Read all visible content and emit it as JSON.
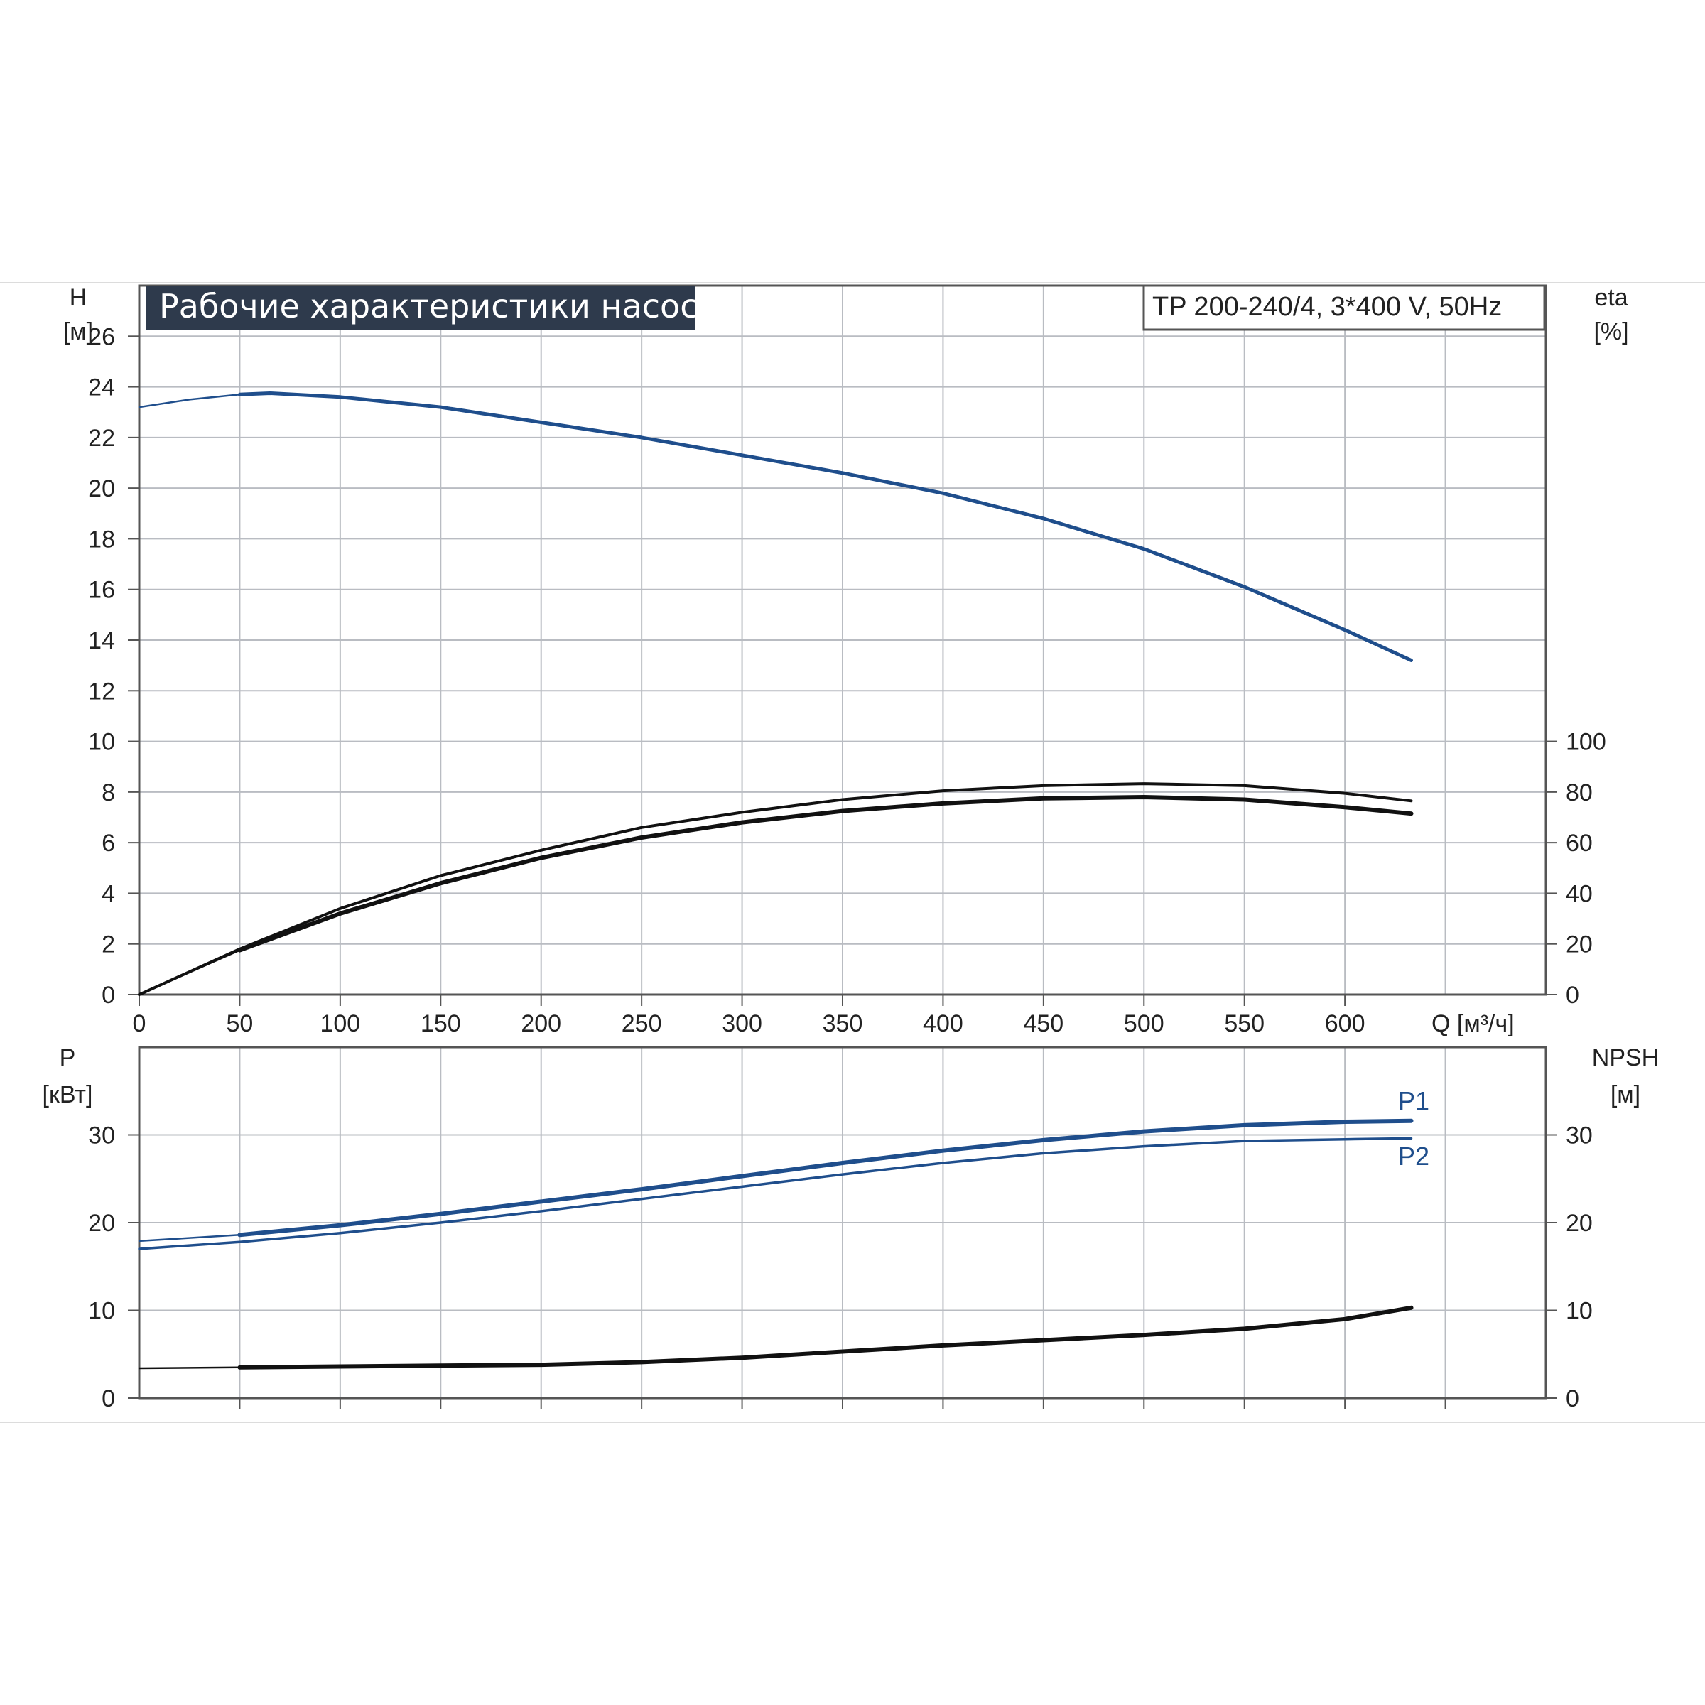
{
  "colors": {
    "blue": "#1f4e8c",
    "black": "#111111",
    "grid": "#b9bcc2",
    "title_bg": "#2e3a4c",
    "frame": "#555555"
  },
  "header": {
    "title": "Рабочие характеристики насоса",
    "model": "TP 200-240/4, 3*400 V, 50Hz"
  },
  "chart_data": [
    {
      "type": "line",
      "panel": "top",
      "xlabel": "Q [м³/ч]",
      "xlim": [
        0,
        700
      ],
      "xticks": [
        0,
        50,
        100,
        150,
        200,
        250,
        300,
        350,
        400,
        450,
        500,
        550,
        600
      ],
      "left_axis": {
        "label_line1": "H",
        "label_line2": "[м]",
        "lim": [
          0,
          28
        ],
        "ticks": [
          0,
          2,
          4,
          6,
          8,
          10,
          12,
          14,
          16,
          18,
          20,
          22,
          24,
          26
        ]
      },
      "right_axis": {
        "label_line1": "eta",
        "label_line2": "[%]",
        "lim": [
          0,
          280
        ],
        "ticks": [
          0,
          20,
          40,
          60,
          80,
          100
        ]
      },
      "series": [
        {
          "key": "head",
          "axis": "left",
          "color": "#1f4e8c",
          "width": 5,
          "x": [
            0,
            25,
            50,
            65,
            100,
            150,
            200,
            250,
            300,
            350,
            400,
            450,
            500,
            550,
            600,
            633
          ],
          "y": [
            23.2,
            23.5,
            23.7,
            23.75,
            23.6,
            23.2,
            22.6,
            22.0,
            21.3,
            20.6,
            19.8,
            18.8,
            17.6,
            16.1,
            14.4,
            13.2
          ],
          "thin_until": 45
        },
        {
          "key": "eta_upper",
          "axis": "right",
          "color": "#111111",
          "width": 4,
          "x": [
            0,
            50,
            100,
            150,
            200,
            250,
            300,
            350,
            400,
            450,
            500,
            550,
            600,
            633
          ],
          "y": [
            0,
            18,
            34,
            47,
            57,
            66,
            72,
            77,
            80.5,
            82.5,
            83.3,
            82.5,
            79.5,
            76.5
          ]
        },
        {
          "key": "eta_lower",
          "axis": "right",
          "color": "#111111",
          "width": 6,
          "x": [
            0,
            50,
            100,
            150,
            200,
            250,
            300,
            350,
            400,
            450,
            500,
            550,
            600,
            633
          ],
          "y": [
            0,
            17.5,
            32,
            44,
            54,
            62,
            68,
            72.5,
            75.5,
            77.5,
            78,
            77,
            74,
            71.5
          ],
          "thin_until": 45
        }
      ]
    },
    {
      "type": "line",
      "panel": "bottom",
      "xlim": [
        0,
        700
      ],
      "left_axis": {
        "label_line1": "P",
        "label_line2": "[кВт]",
        "lim": [
          0,
          40
        ],
        "ticks": [
          0,
          10,
          20,
          30
        ]
      },
      "right_axis": {
        "label_line1": "NPSH",
        "label_line2": "[м]",
        "lim": [
          0,
          40
        ],
        "ticks": [
          0,
          10,
          20,
          30
        ]
      },
      "series": [
        {
          "key": "p1",
          "name": "P1",
          "axis": "left",
          "color": "#1f4e8c",
          "width": 6,
          "x": [
            0,
            50,
            100,
            150,
            200,
            250,
            300,
            350,
            400,
            450,
            500,
            550,
            600,
            633
          ],
          "y": [
            17.9,
            18.6,
            19.7,
            21.0,
            22.4,
            23.8,
            25.3,
            26.8,
            28.2,
            29.4,
            30.4,
            31.1,
            31.5,
            31.6
          ],
          "thin_until": 45
        },
        {
          "key": "p2",
          "name": "P2",
          "axis": "left",
          "color": "#1f4e8c",
          "width": 3.5,
          "x": [
            0,
            50,
            100,
            150,
            200,
            250,
            300,
            350,
            400,
            450,
            500,
            550,
            600,
            633
          ],
          "y": [
            17.0,
            17.8,
            18.8,
            20.0,
            21.3,
            22.7,
            24.1,
            25.5,
            26.8,
            27.9,
            28.7,
            29.3,
            29.5,
            29.6
          ]
        },
        {
          "key": "npsh",
          "axis": "right",
          "color": "#111111",
          "width": 6,
          "x": [
            0,
            50,
            100,
            150,
            200,
            250,
            300,
            350,
            400,
            450,
            500,
            550,
            600,
            633
          ],
          "y": [
            3.4,
            3.5,
            3.6,
            3.7,
            3.8,
            4.1,
            4.6,
            5.3,
            6.0,
            6.6,
            7.2,
            7.9,
            9.0,
            10.3
          ],
          "thin_until": 45
        }
      ]
    }
  ]
}
